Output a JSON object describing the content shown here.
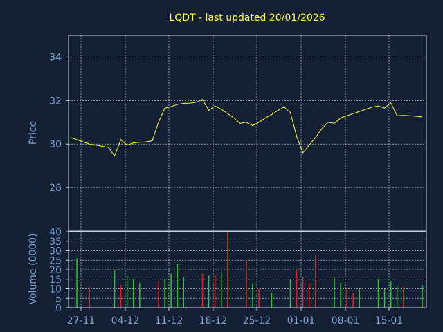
{
  "colors": {
    "background": "#132033",
    "frame": "#c7d2e4",
    "grid": "#b5c0d0",
    "title": "#ffff33",
    "axis_text": "#7f9ecf",
    "price_line": "#ffff33",
    "volume_up": "#22cc22",
    "volume_down": "#dd2222"
  },
  "chart_data": [
    {
      "type": "line",
      "title": "LQDT - last updated 20/01/2026",
      "ylabel": "Price",
      "ylim": [
        26.0,
        35.0
      ],
      "yticks": [
        28,
        30,
        32,
        34
      ],
      "grid": true,
      "series": [
        {
          "values": [
            30.3,
            30.2,
            30.1,
            30.0,
            29.95,
            29.9,
            29.85,
            29.45,
            30.2,
            29.95,
            30.05,
            30.08,
            30.1,
            30.15,
            31.0,
            31.65,
            31.72,
            31.82,
            31.87,
            31.88,
            31.92,
            32.05,
            31.55,
            31.75,
            31.6,
            31.4,
            31.2,
            30.95,
            31.0,
            30.85,
            31.0,
            31.2,
            31.35,
            31.55,
            31.7,
            31.45,
            30.35,
            29.6,
            29.95,
            30.3,
            30.7,
            31.0,
            30.95,
            31.2,
            31.3,
            31.4,
            31.5,
            31.6,
            31.7,
            31.75,
            31.65,
            31.9,
            31.3,
            31.32,
            31.3,
            31.28,
            31.25
          ]
        }
      ]
    },
    {
      "type": "bar",
      "ylabel": "Volume (0000)",
      "ylim": [
        0,
        40
      ],
      "yticks": [
        0,
        5,
        10,
        15,
        20,
        25,
        30,
        35,
        40
      ],
      "grid": true,
      "x_tick_labels": [
        "27-11",
        "04-12",
        "11-12",
        "18-12",
        "25-12",
        "01-01",
        "08-01",
        "15-01"
      ],
      "values": [
        0,
        26,
        0,
        11,
        0,
        0,
        0,
        20,
        12,
        17,
        15,
        13,
        0,
        0,
        14,
        15,
        18,
        23,
        16,
        0,
        0,
        18,
        17,
        17,
        19,
        40,
        0,
        0,
        25,
        13,
        10,
        0,
        8,
        0,
        0,
        15,
        20,
        16,
        13,
        28,
        0,
        0,
        16,
        13,
        10,
        8,
        10,
        0,
        0,
        15,
        10,
        14,
        12,
        11,
        0,
        0,
        12
      ],
      "directions": [
        "up",
        "up",
        "up",
        "down",
        "up",
        "up",
        "up",
        "up",
        "down",
        "up",
        "up",
        "up",
        "up",
        "up",
        "down",
        "up",
        "up",
        "up",
        "up",
        "up",
        "up",
        "down",
        "up",
        "down",
        "up",
        "down",
        "up",
        "up",
        "down",
        "up",
        "down",
        "up",
        "up",
        "up",
        "up",
        "up",
        "down",
        "down",
        "down",
        "down",
        "up",
        "up",
        "up",
        "up",
        "down",
        "down",
        "up",
        "up",
        "up",
        "up",
        "up",
        "up",
        "up",
        "down",
        "up",
        "up",
        "up"
      ]
    }
  ]
}
